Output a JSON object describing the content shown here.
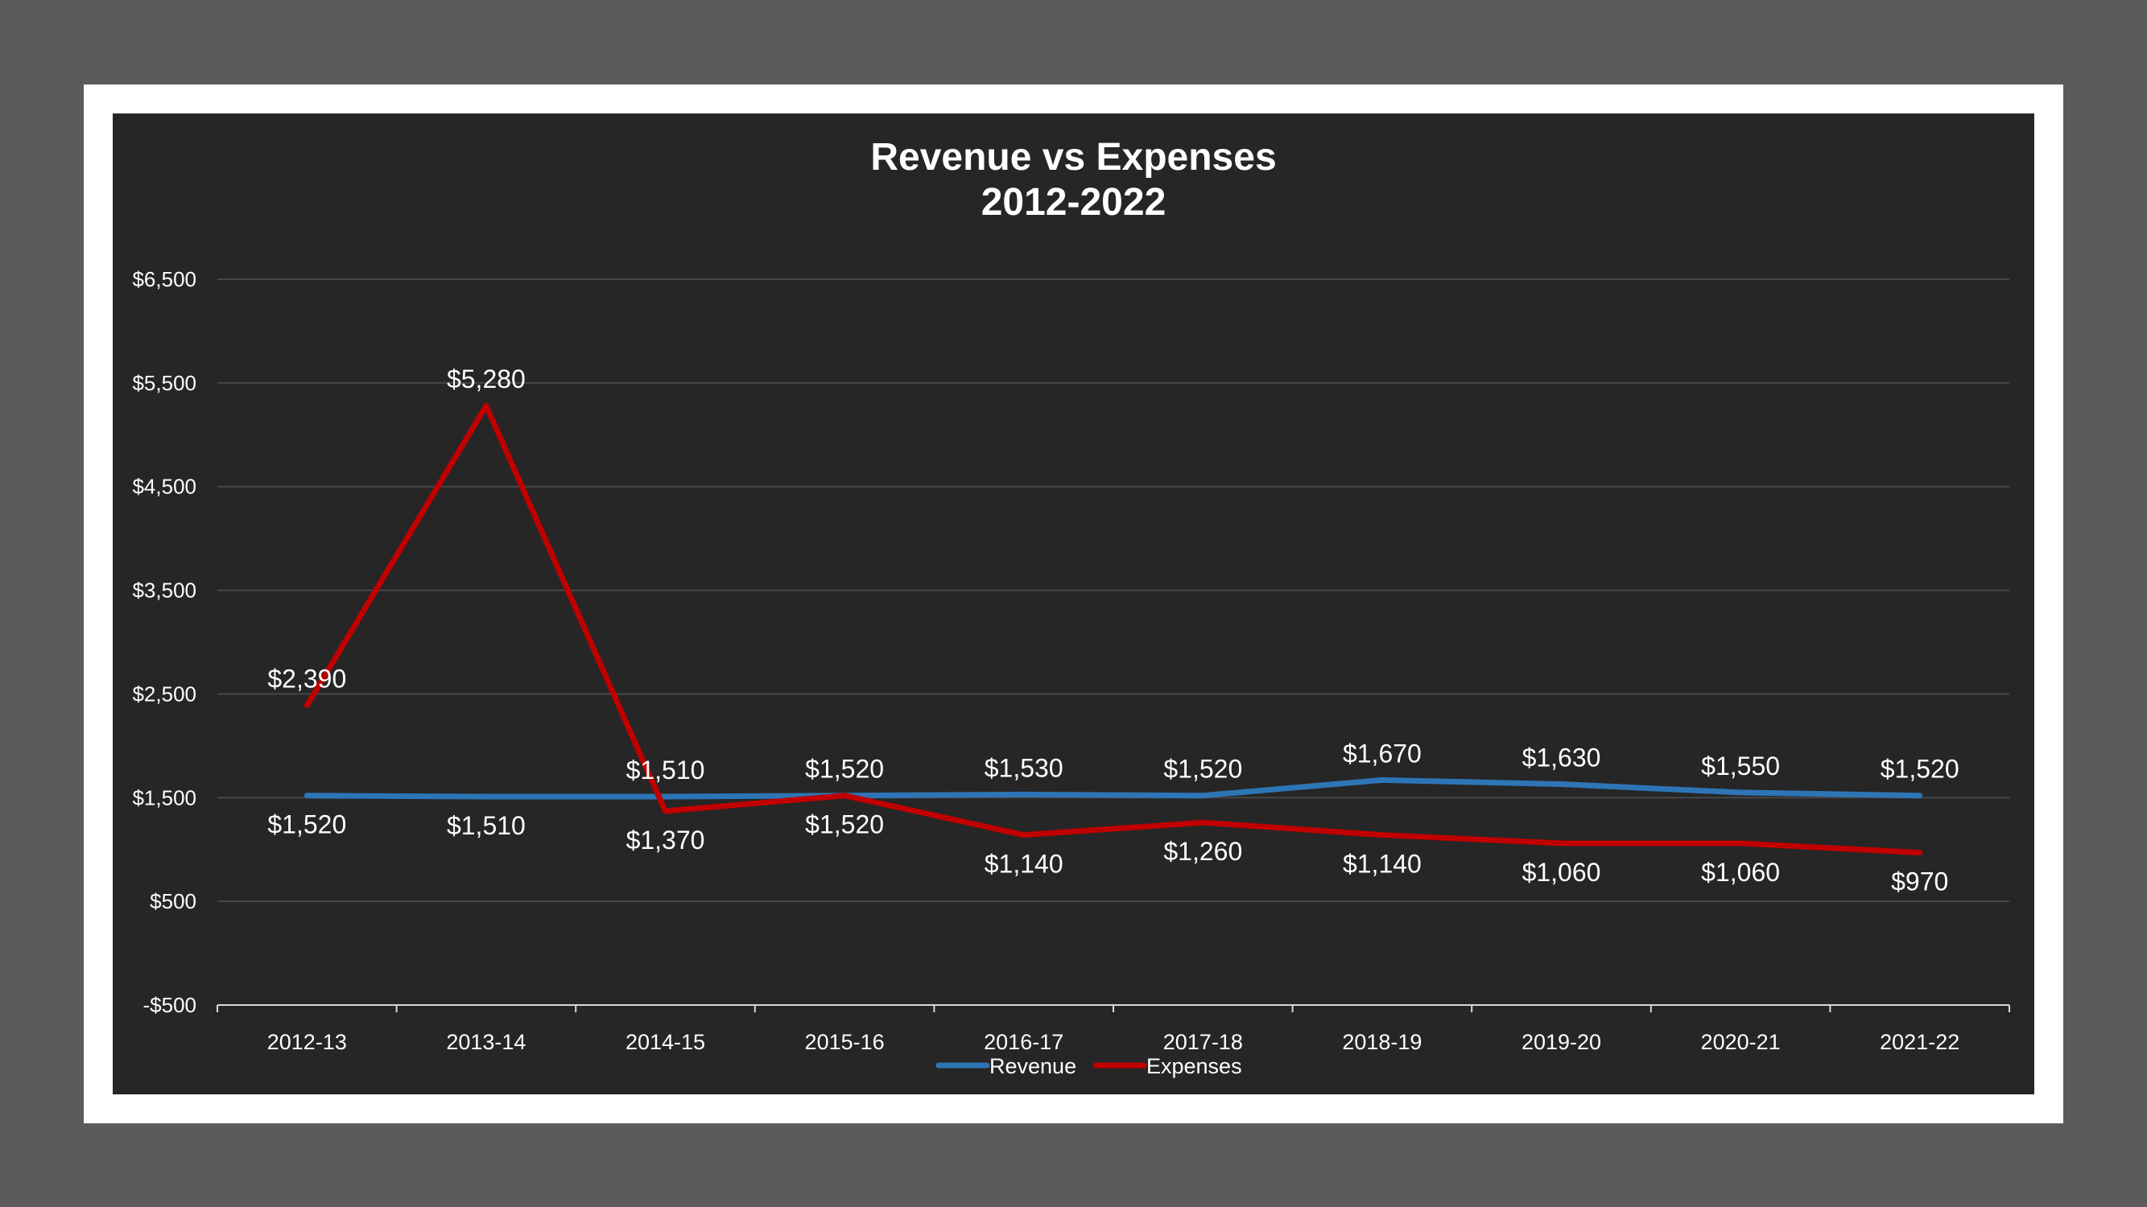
{
  "chart_data": {
    "type": "line",
    "title": [
      "Revenue vs Expenses",
      "2012-2022"
    ],
    "categories": [
      "2012-13",
      "2013-14",
      "2014-15",
      "2015-16",
      "2016-17",
      "2017-18",
      "2018-19",
      "2019-20",
      "2020-21",
      "2021-22"
    ],
    "series": [
      {
        "name": "Revenue",
        "color": "#2e75b6",
        "values": [
          1520,
          1510,
          1510,
          1520,
          1530,
          1520,
          1670,
          1630,
          1550,
          1520
        ],
        "labels": [
          "$1,520",
          "$1,510",
          "$1,510",
          "$1,520",
          "$1,530",
          "$1,520",
          "$1,670",
          "$1,630",
          "$1,550",
          "$1,520"
        ],
        "label_pos": [
          "below",
          "below",
          "above",
          "above",
          "above",
          "above",
          "above",
          "above",
          "above",
          "above"
        ]
      },
      {
        "name": "Expenses",
        "color": "#c00000",
        "values": [
          2390,
          5280,
          1370,
          1520,
          1140,
          1260,
          1140,
          1060,
          1060,
          970
        ],
        "labels": [
          "$2,390",
          "$5,280",
          "$1,370",
          "$1,520",
          "$1,140",
          "$1,260",
          "$1,140",
          "$1,060",
          "$1,060",
          "$970"
        ],
        "label_pos": [
          "above",
          "above",
          "below",
          "below",
          "below",
          "below",
          "below",
          "below",
          "below",
          "below"
        ]
      }
    ],
    "ylim": [
      -500,
      6500
    ],
    "yticks": [
      -500,
      500,
      1500,
      2500,
      3500,
      4500,
      5500,
      6500
    ],
    "ytick_labels": [
      "-$500",
      "$500",
      "$1,500",
      "$2,500",
      "$3,500",
      "$4,500",
      "$5,500",
      "$6,500"
    ],
    "grid": true,
    "legend": "bottom",
    "colors": {
      "background": "#262626",
      "frame": "#ffffff",
      "outer": "#5b5b5b",
      "grid": "#474747",
      "text": "#ffffff"
    }
  }
}
